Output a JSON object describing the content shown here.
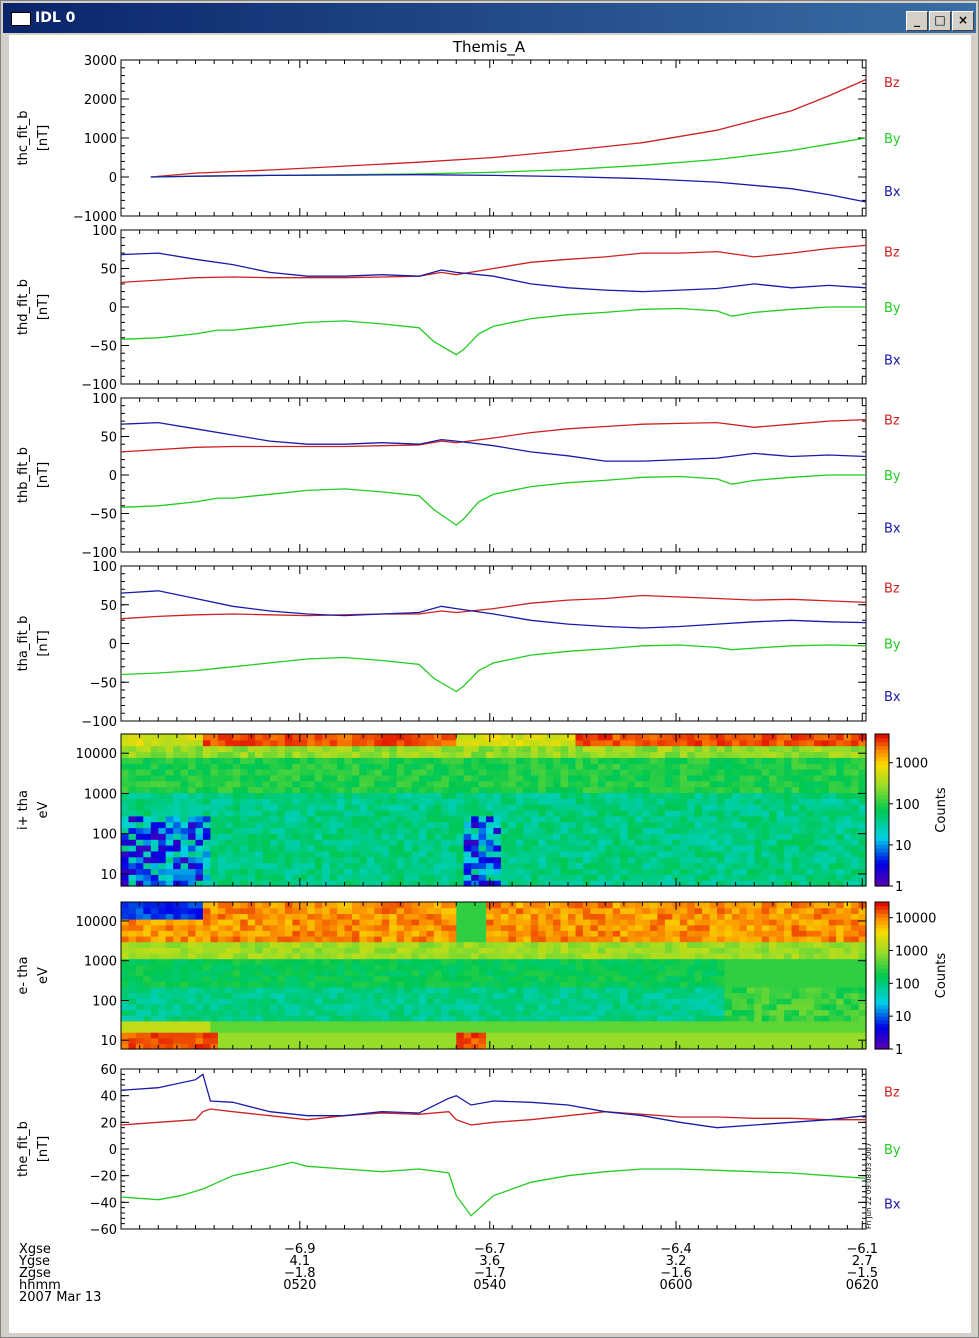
{
  "window": {
    "title": "IDL 0",
    "minimize_label": "_",
    "maximize_label": "□",
    "close_label": "×"
  },
  "colors": {
    "bz": "#cc2222",
    "by": "#22cc22",
    "bx": "#1a1aaa"
  },
  "chart_data": [
    {
      "type": "line",
      "title": "Themis_A",
      "ylabel": "thc_fit_b",
      "unit": "[nT]",
      "ylim": [
        -1000,
        3000
      ],
      "yticks": [
        3000,
        2000,
        1000,
        0,
        -1000
      ],
      "xlim": [
        0,
        100
      ],
      "series": [
        {
          "name": "Bz",
          "color": "#cc2222",
          "x": [
            4,
            10,
            20,
            30,
            40,
            50,
            60,
            70,
            80,
            90,
            95,
            100
          ],
          "y": [
            0,
            100,
            180,
            280,
            380,
            500,
            680,
            880,
            1200,
            1700,
            2080,
            2500
          ]
        },
        {
          "name": "By",
          "color": "#22cc22",
          "x": [
            4,
            10,
            20,
            30,
            40,
            50,
            60,
            70,
            80,
            90,
            95,
            100
          ],
          "y": [
            0,
            20,
            40,
            60,
            80,
            120,
            190,
            300,
            450,
            680,
            840,
            1000
          ]
        },
        {
          "name": "Bx",
          "color": "#1a1aaa",
          "x": [
            4,
            10,
            20,
            30,
            40,
            50,
            60,
            70,
            80,
            90,
            95,
            100
          ],
          "y": [
            0,
            20,
            40,
            50,
            60,
            40,
            10,
            -40,
            -130,
            -300,
            -450,
            -640
          ]
        }
      ]
    },
    {
      "type": "line",
      "ylabel": "thd_fit_b",
      "unit": "[nT]",
      "ylim": [
        -100,
        100
      ],
      "yticks": [
        100,
        50,
        0,
        -50,
        -100
      ],
      "xlim": [
        0,
        100
      ],
      "series": [
        {
          "name": "Bz",
          "color": "#cc2222",
          "x": [
            0,
            5,
            10,
            15,
            20,
            25,
            30,
            35,
            40,
            43,
            45,
            50,
            55,
            60,
            65,
            70,
            75,
            80,
            85,
            90,
            95,
            100
          ],
          "y": [
            32,
            35,
            38,
            39,
            38,
            38,
            38,
            39,
            40,
            45,
            42,
            50,
            58,
            62,
            65,
            70,
            70,
            72,
            65,
            70,
            76,
            80
          ]
        },
        {
          "name": "By",
          "color": "#22cc22",
          "x": [
            0,
            5,
            10,
            13,
            15,
            20,
            25,
            30,
            35,
            40,
            42,
            45,
            46,
            48,
            50,
            55,
            60,
            65,
            70,
            75,
            80,
            82,
            85,
            90,
            95,
            100
          ],
          "y": [
            -42,
            -40,
            -35,
            -30,
            -30,
            -25,
            -20,
            -18,
            -22,
            -27,
            -45,
            -62,
            -55,
            -35,
            -25,
            -15,
            -10,
            -7,
            -3,
            -2,
            -5,
            -12,
            -7,
            -3,
            0,
            0
          ]
        },
        {
          "name": "Bx",
          "color": "#1a1aaa",
          "x": [
            0,
            5,
            10,
            15,
            20,
            25,
            30,
            35,
            40,
            43,
            45,
            50,
            55,
            60,
            65,
            70,
            75,
            80,
            85,
            90,
            95,
            100
          ],
          "y": [
            68,
            70,
            62,
            55,
            45,
            40,
            40,
            42,
            40,
            48,
            45,
            40,
            30,
            25,
            22,
            20,
            22,
            24,
            30,
            25,
            28,
            25
          ]
        }
      ]
    },
    {
      "type": "line",
      "ylabel": "thb_fit_b",
      "unit": "[nT]",
      "ylim": [
        -100,
        100
      ],
      "yticks": [
        100,
        50,
        0,
        -50,
        -100
      ],
      "xlim": [
        0,
        100
      ],
      "series": [
        {
          "name": "Bz",
          "color": "#cc2222",
          "x": [
            0,
            5,
            10,
            15,
            20,
            25,
            30,
            35,
            40,
            43,
            45,
            50,
            55,
            60,
            65,
            70,
            75,
            80,
            85,
            90,
            95,
            100
          ],
          "y": [
            30,
            33,
            36,
            37,
            37,
            37,
            37,
            38,
            39,
            44,
            42,
            48,
            55,
            60,
            63,
            66,
            67,
            68,
            62,
            66,
            70,
            72
          ]
        },
        {
          "name": "By",
          "color": "#22cc22",
          "x": [
            0,
            5,
            10,
            13,
            15,
            20,
            25,
            30,
            35,
            40,
            42,
            45,
            46,
            48,
            50,
            55,
            60,
            65,
            70,
            75,
            80,
            82,
            85,
            90,
            95,
            100
          ],
          "y": [
            -42,
            -40,
            -35,
            -30,
            -30,
            -25,
            -20,
            -18,
            -22,
            -27,
            -45,
            -65,
            -57,
            -35,
            -25,
            -15,
            -10,
            -7,
            -3,
            -2,
            -5,
            -12,
            -7,
            -3,
            0,
            0
          ]
        },
        {
          "name": "Bx",
          "color": "#1a1aaa",
          "x": [
            0,
            5,
            10,
            15,
            20,
            25,
            30,
            35,
            40,
            43,
            45,
            50,
            55,
            60,
            65,
            70,
            75,
            80,
            85,
            90,
            95,
            100
          ],
          "y": [
            66,
            68,
            60,
            52,
            44,
            40,
            40,
            42,
            40,
            46,
            44,
            38,
            30,
            25,
            18,
            18,
            20,
            22,
            28,
            24,
            26,
            24
          ]
        }
      ]
    },
    {
      "type": "line",
      "ylabel": "tha_fit_b",
      "unit": "[nT]",
      "ylim": [
        -100,
        100
      ],
      "yticks": [
        100,
        50,
        0,
        -50,
        -100
      ],
      "xlim": [
        0,
        100
      ],
      "series": [
        {
          "name": "Bz",
          "color": "#cc2222",
          "x": [
            0,
            5,
            10,
            15,
            20,
            25,
            30,
            35,
            40,
            43,
            45,
            50,
            55,
            60,
            65,
            70,
            75,
            80,
            85,
            90,
            95,
            100
          ],
          "y": [
            32,
            35,
            37,
            38,
            37,
            36,
            37,
            38,
            38,
            42,
            40,
            45,
            52,
            56,
            58,
            62,
            60,
            58,
            56,
            57,
            55,
            53
          ]
        },
        {
          "name": "By",
          "color": "#22cc22",
          "x": [
            0,
            5,
            10,
            13,
            15,
            20,
            25,
            30,
            35,
            40,
            42,
            45,
            46,
            48,
            50,
            55,
            60,
            65,
            70,
            75,
            80,
            82,
            85,
            90,
            95,
            100
          ],
          "y": [
            -40,
            -38,
            -35,
            -32,
            -30,
            -25,
            -20,
            -18,
            -22,
            -27,
            -45,
            -62,
            -55,
            -35,
            -25,
            -15,
            -10,
            -7,
            -3,
            -2,
            -5,
            -8,
            -6,
            -3,
            -2,
            -3
          ]
        },
        {
          "name": "Bx",
          "color": "#1a1aaa",
          "x": [
            0,
            5,
            10,
            15,
            20,
            25,
            30,
            35,
            40,
            43,
            45,
            50,
            55,
            60,
            65,
            70,
            75,
            80,
            85,
            90,
            95,
            100
          ],
          "y": [
            65,
            68,
            58,
            48,
            42,
            38,
            36,
            38,
            40,
            48,
            45,
            38,
            30,
            25,
            22,
            20,
            22,
            25,
            28,
            30,
            28,
            27
          ]
        }
      ]
    },
    {
      "type": "heatmap",
      "ylabel": "i+ tha",
      "unit": "eV",
      "ylog": true,
      "ylim": [
        5,
        30000
      ],
      "yticks": [
        10000,
        1000,
        100,
        10
      ],
      "colorbar": {
        "label": "Counts",
        "ticks": [
          1000,
          100,
          10,
          1
        ],
        "range": [
          1,
          5000
        ]
      }
    },
    {
      "type": "heatmap",
      "ylabel": "e- tha",
      "unit": "eV",
      "ylog": true,
      "ylim": [
        6,
        30000
      ],
      "yticks": [
        10000,
        1000,
        100,
        10
      ],
      "colorbar": {
        "label": "Counts",
        "ticks": [
          10000,
          1000,
          100,
          10,
          1
        ],
        "range": [
          1,
          30000
        ]
      }
    },
    {
      "type": "line",
      "ylabel": "the_fit_b",
      "unit": "[nT]",
      "ylim": [
        -60,
        60
      ],
      "yticks": [
        60,
        40,
        20,
        0,
        -20,
        -40,
        -60
      ],
      "xlim": [
        0,
        100
      ],
      "series": [
        {
          "name": "Bz",
          "color": "#cc2222",
          "x": [
            0,
            5,
            10,
            11,
            12,
            15,
            20,
            25,
            30,
            35,
            40,
            44,
            45,
            47,
            50,
            55,
            60,
            65,
            70,
            75,
            80,
            85,
            90,
            95,
            100
          ],
          "y": [
            18,
            20,
            22,
            28,
            30,
            28,
            25,
            22,
            25,
            27,
            26,
            28,
            22,
            18,
            20,
            22,
            25,
            28,
            26,
            24,
            24,
            23,
            23,
            22,
            22
          ]
        },
        {
          "name": "By",
          "color": "#22cc22",
          "x": [
            0,
            5,
            8,
            11,
            13,
            15,
            20,
            23,
            25,
            30,
            35,
            40,
            44,
            45,
            47,
            50,
            55,
            60,
            65,
            70,
            75,
            80,
            85,
            90,
            95,
            100
          ],
          "y": [
            -36,
            -38,
            -35,
            -30,
            -25,
            -20,
            -14,
            -10,
            -13,
            -15,
            -17,
            -15,
            -18,
            -35,
            -50,
            -35,
            -25,
            -20,
            -17,
            -15,
            -15,
            -16,
            -17,
            -18,
            -20,
            -22
          ]
        },
        {
          "name": "Bx",
          "color": "#1a1aaa",
          "x": [
            0,
            5,
            10,
            11,
            12,
            15,
            20,
            25,
            30,
            35,
            40,
            44,
            45,
            47,
            50,
            55,
            60,
            65,
            70,
            75,
            80,
            85,
            90,
            95,
            100
          ],
          "y": [
            44,
            46,
            52,
            56,
            36,
            35,
            28,
            25,
            25,
            28,
            27,
            38,
            40,
            33,
            36,
            35,
            33,
            28,
            25,
            20,
            16,
            18,
            20,
            22,
            25
          ]
        }
      ]
    }
  ],
  "component_labels": [
    "Bz",
    "By",
    "Bx"
  ],
  "xaxis": {
    "row_labels": [
      "Xgse",
      "Ygse",
      "Zgse",
      "hhmm",
      "2007 Mar 13"
    ],
    "ticks": [
      {
        "x": 24,
        "values": [
          "-6.9",
          "4.1",
          "-1.8",
          "0520"
        ]
      },
      {
        "x": 49.5,
        "values": [
          "-6.7",
          "3.6",
          "-1.7",
          "0540"
        ]
      },
      {
        "x": 74.5,
        "values": [
          "-6.4",
          "3.2",
          "-1.6",
          "0600"
        ]
      },
      {
        "x": 99.5,
        "values": [
          "-6.1",
          "2.7",
          "-1.5",
          "0620"
        ]
      }
    ]
  },
  "stamp": "Fri Jun 22 09:08:03 2007"
}
